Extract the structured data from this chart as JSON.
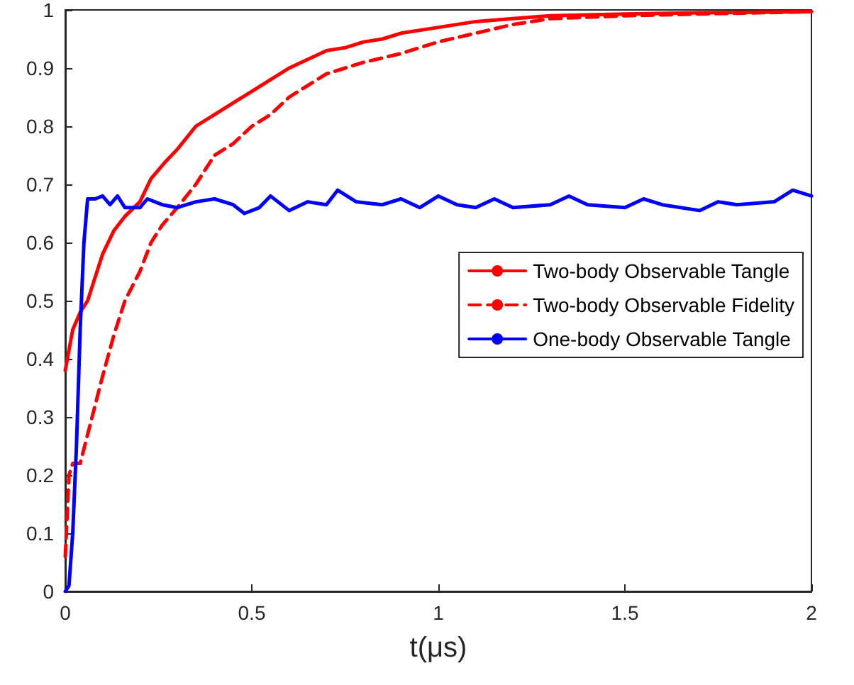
{
  "chart_data": {
    "type": "line",
    "xlabel": "t(μs)",
    "xlim": [
      0,
      2
    ],
    "xticks": [
      0,
      0.5,
      1,
      1.5,
      2
    ],
    "ylim": [
      0,
      1
    ],
    "yticks": [
      0,
      0.1,
      0.2,
      0.3,
      0.4,
      0.5,
      0.6,
      0.7,
      0.8,
      0.9,
      1
    ],
    "grid": false,
    "legend": "right",
    "marker": "none",
    "series": [
      {
        "name": "Two-body Observable Tangle",
        "color": "#ff0000",
        "line_style": "solid",
        "x": [
          0,
          0.02,
          0.04,
          0.06,
          0.08,
          0.1,
          0.13,
          0.16,
          0.2,
          0.23,
          0.27,
          0.3,
          0.35,
          0.4,
          0.45,
          0.5,
          0.55,
          0.6,
          0.65,
          0.7,
          0.75,
          0.8,
          0.85,
          0.9,
          1,
          1.1,
          1.2,
          1.3,
          1.5,
          1.7,
          2
        ],
        "values": [
          0.38,
          0.45,
          0.48,
          0.5,
          0.54,
          0.58,
          0.62,
          0.645,
          0.67,
          0.71,
          0.74,
          0.76,
          0.8,
          0.82,
          0.84,
          0.86,
          0.88,
          0.9,
          0.915,
          0.93,
          0.935,
          0.945,
          0.95,
          0.96,
          0.97,
          0.98,
          0.985,
          0.99,
          0.993,
          0.995,
          0.997
        ]
      },
      {
        "name": "Two-body Observable Fidelity",
        "color": "#ff0000",
        "line_style": "dashed",
        "x": [
          0,
          0.01,
          0.02,
          0.04,
          0.06,
          0.08,
          0.1,
          0.13,
          0.16,
          0.2,
          0.23,
          0.26,
          0.3,
          0.35,
          0.4,
          0.45,
          0.5,
          0.55,
          0.6,
          0.65,
          0.7,
          0.75,
          0.8,
          0.9,
          1,
          1.1,
          1.2,
          1.3,
          1.5,
          1.7,
          2
        ],
        "values": [
          0.06,
          0.2,
          0.22,
          0.22,
          0.27,
          0.32,
          0.37,
          0.44,
          0.5,
          0.55,
          0.6,
          0.63,
          0.66,
          0.7,
          0.75,
          0.77,
          0.8,
          0.82,
          0.85,
          0.87,
          0.89,
          0.9,
          0.91,
          0.925,
          0.945,
          0.96,
          0.975,
          0.985,
          0.99,
          0.993,
          0.997
        ]
      },
      {
        "name": "One-body Observable Tangle",
        "color": "#0000ff",
        "line_style": "solid",
        "x": [
          0,
          0.01,
          0.02,
          0.03,
          0.04,
          0.05,
          0.06,
          0.08,
          0.1,
          0.12,
          0.14,
          0.16,
          0.2,
          0.22,
          0.26,
          0.3,
          0.35,
          0.4,
          0.45,
          0.48,
          0.52,
          0.55,
          0.6,
          0.65,
          0.7,
          0.73,
          0.78,
          0.85,
          0.9,
          0.95,
          1,
          1.05,
          1.1,
          1.15,
          1.2,
          1.3,
          1.35,
          1.4,
          1.5,
          1.55,
          1.6,
          1.7,
          1.75,
          1.8,
          1.9,
          1.95,
          2
        ],
        "values": [
          0,
          0.01,
          0.1,
          0.25,
          0.45,
          0.6,
          0.675,
          0.675,
          0.68,
          0.665,
          0.68,
          0.66,
          0.66,
          0.675,
          0.665,
          0.66,
          0.67,
          0.675,
          0.665,
          0.65,
          0.66,
          0.68,
          0.655,
          0.67,
          0.665,
          0.69,
          0.67,
          0.665,
          0.675,
          0.66,
          0.68,
          0.665,
          0.66,
          0.675,
          0.66,
          0.665,
          0.68,
          0.665,
          0.66,
          0.675,
          0.665,
          0.655,
          0.67,
          0.665,
          0.67,
          0.69,
          0.68
        ]
      }
    ]
  }
}
